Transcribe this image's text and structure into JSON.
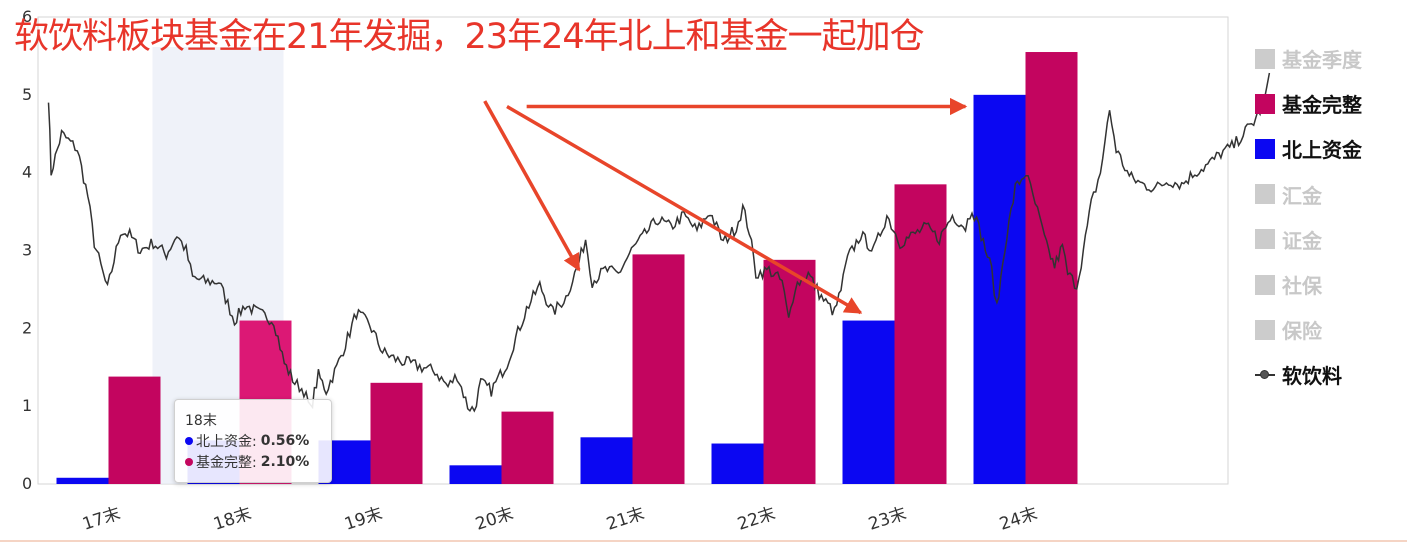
{
  "title": "软饮料板块基金在21年发掘，23年24年北上和基金一起加仓",
  "legend": {
    "items": [
      {
        "label": "基金季度",
        "color": "#cccccc",
        "active": false,
        "kind": "bar"
      },
      {
        "label": "基金完整",
        "color": "#c3055f",
        "active": true,
        "kind": "bar"
      },
      {
        "label": "北上资金",
        "color": "#0b07f2",
        "active": true,
        "kind": "bar"
      },
      {
        "label": "汇金",
        "color": "#cccccc",
        "active": false,
        "kind": "bar"
      },
      {
        "label": "证金",
        "color": "#cccccc",
        "active": false,
        "kind": "bar"
      },
      {
        "label": "社保",
        "color": "#cccccc",
        "active": false,
        "kind": "bar"
      },
      {
        "label": "保险",
        "color": "#cccccc",
        "active": false,
        "kind": "bar"
      },
      {
        "label": "软饮料",
        "color": "#333333",
        "active": true,
        "kind": "line"
      }
    ]
  },
  "tooltip": {
    "title": "18末",
    "rows": [
      {
        "label": "北上资金:",
        "value": "0.56%",
        "color": "#0b07f2"
      },
      {
        "label": "基金完整:",
        "value": "2.10%",
        "color": "#c3055f"
      }
    ]
  },
  "chart_data": {
    "type": "bar",
    "categories": [
      "17末",
      "18末",
      "19末",
      "20末",
      "21末",
      "22末",
      "23末",
      "24末"
    ],
    "ylim": [
      0,
      6
    ],
    "yticks": [
      "0",
      "1",
      "2",
      "3",
      "4",
      "5",
      "6"
    ],
    "highlight_category": "18末",
    "series": [
      {
        "name": "北上资金",
        "color": "#0b07f2",
        "values": [
          0.08,
          0.56,
          0.56,
          0.24,
          0.6,
          0.52,
          2.1,
          5.0
        ]
      },
      {
        "name": "基金完整",
        "color": "#c3055f",
        "values": [
          1.38,
          2.1,
          1.3,
          0.93,
          2.95,
          2.88,
          3.85,
          5.55
        ]
      }
    ],
    "line": {
      "name": "软饮料",
      "color": "#333333",
      "anchors": [
        [
          0,
          4.98
        ],
        [
          0.02,
          4.0
        ],
        [
          0.1,
          4.5
        ],
        [
          0.22,
          4.3
        ],
        [
          0.3,
          3.7
        ],
        [
          0.35,
          3.1
        ],
        [
          0.45,
          2.5
        ],
        [
          0.55,
          3.25
        ],
        [
          0.62,
          3.2
        ],
        [
          0.7,
          3.0
        ],
        [
          0.8,
          3.1
        ],
        [
          0.9,
          2.95
        ],
        [
          0.98,
          3.2
        ],
        [
          1.05,
          3.0
        ],
        [
          1.1,
          2.65
        ],
        [
          1.2,
          2.6
        ],
        [
          1.3,
          2.6
        ],
        [
          1.42,
          2.1
        ],
        [
          1.5,
          2.3
        ],
        [
          1.6,
          2.2
        ],
        [
          1.72,
          2.1
        ],
        [
          1.8,
          1.55
        ],
        [
          1.88,
          1.3
        ],
        [
          1.95,
          1.2
        ],
        [
          2.0,
          0.95
        ],
        [
          2.06,
          1.4
        ],
        [
          2.12,
          1.2
        ],
        [
          2.2,
          1.5
        ],
        [
          2.3,
          1.95
        ],
        [
          2.35,
          2.2
        ],
        [
          2.45,
          2.05
        ],
        [
          2.55,
          1.7
        ],
        [
          2.65,
          1.6
        ],
        [
          2.75,
          1.55
        ],
        [
          2.85,
          1.5
        ],
        [
          2.95,
          1.45
        ],
        [
          3.05,
          1.25
        ],
        [
          3.12,
          1.4
        ],
        [
          3.2,
          1.0
        ],
        [
          3.25,
          0.95
        ],
        [
          3.3,
          1.3
        ],
        [
          3.38,
          1.2
        ],
        [
          3.5,
          1.55
        ],
        [
          3.55,
          1.8
        ],
        [
          3.65,
          2.25
        ],
        [
          3.75,
          2.55
        ],
        [
          3.85,
          2.2
        ],
        [
          3.95,
          2.4
        ],
        [
          4.05,
          2.85
        ],
        [
          4.1,
          3.15
        ],
        [
          4.15,
          2.6
        ],
        [
          4.25,
          2.75
        ],
        [
          4.35,
          2.7
        ],
        [
          4.45,
          3.0
        ],
        [
          4.55,
          3.2
        ],
        [
          4.65,
          3.4
        ],
        [
          4.75,
          3.3
        ],
        [
          4.85,
          3.45
        ],
        [
          4.95,
          3.25
        ],
        [
          5.05,
          3.5
        ],
        [
          5.15,
          3.1
        ],
        [
          5.25,
          3.3
        ],
        [
          5.3,
          3.55
        ],
        [
          5.35,
          3.25
        ],
        [
          5.4,
          2.7
        ],
        [
          5.5,
          2.75
        ],
        [
          5.6,
          2.6
        ],
        [
          5.65,
          2.1
        ],
        [
          5.7,
          2.55
        ],
        [
          5.8,
          2.7
        ],
        [
          5.9,
          2.4
        ],
        [
          6.0,
          2.2
        ],
        [
          6.05,
          2.5
        ],
        [
          6.1,
          2.9
        ],
        [
          6.2,
          3.2
        ],
        [
          6.3,
          3.0
        ],
        [
          6.4,
          3.45
        ],
        [
          6.5,
          3.1
        ],
        [
          6.6,
          3.2
        ],
        [
          6.7,
          3.3
        ],
        [
          6.8,
          3.15
        ],
        [
          6.9,
          3.45
        ],
        [
          7.0,
          3.3
        ],
        [
          7.05,
          3.55
        ],
        [
          7.12,
          3.2
        ],
        [
          7.2,
          2.75
        ],
        [
          7.24,
          2.25
        ],
        [
          7.3,
          3.05
        ],
        [
          7.38,
          3.8
        ],
        [
          7.46,
          4.0
        ],
        [
          7.55,
          3.5
        ],
        [
          7.62,
          3.05
        ],
        [
          7.68,
          2.8
        ],
        [
          7.74,
          3.05
        ],
        [
          7.78,
          2.7
        ],
        [
          7.85,
          2.55
        ],
        [
          7.9,
          3.0
        ],
        [
          7.96,
          3.6
        ],
        [
          8.03,
          4.0
        ],
        [
          8.1,
          4.8
        ],
        [
          8.15,
          4.3
        ],
        [
          8.25,
          3.95
        ],
        [
          8.35,
          3.85
        ],
        [
          8.45,
          3.8
        ],
        [
          8.55,
          3.9
        ],
        [
          8.65,
          3.85
        ],
        [
          8.75,
          4.0
        ],
        [
          8.85,
          4.1
        ],
        [
          8.95,
          4.25
        ],
        [
          9.05,
          4.35
        ],
        [
          9.12,
          4.5
        ],
        [
          9.2,
          4.65
        ],
        [
          9.28,
          4.9
        ],
        [
          9.32,
          5.28
        ]
      ]
    },
    "annotations": {
      "arrows": [
        {
          "from": [
            3.33,
            4.92
          ],
          "to": [
            4.05,
            2.75
          ]
        },
        {
          "from": [
            3.5,
            4.85
          ],
          "to": [
            6.2,
            2.2
          ]
        },
        {
          "from": [
            3.65,
            4.85
          ],
          "to": [
            7.0,
            4.85
          ]
        }
      ],
      "color": "#e8452a"
    }
  }
}
